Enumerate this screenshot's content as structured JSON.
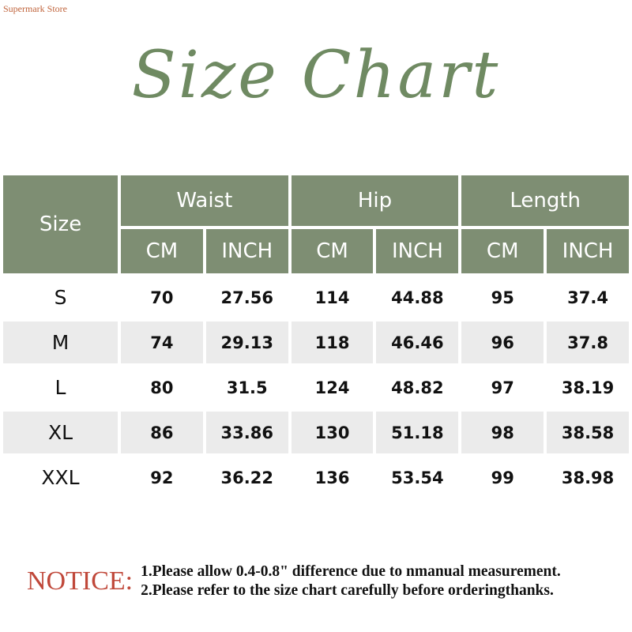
{
  "store_name": "Supermark Store",
  "title": "Size Chart",
  "table": {
    "size_header": "Size",
    "groups": [
      "Waist",
      "Hip",
      "Length"
    ],
    "units": [
      "CM",
      "INCH",
      "CM",
      "INCH",
      "CM",
      "INCH"
    ],
    "rows": [
      {
        "size": "S",
        "values": [
          "70",
          "27.56",
          "114",
          "44.88",
          "95",
          "37.4"
        ]
      },
      {
        "size": "M",
        "values": [
          "74",
          "29.13",
          "118",
          "46.46",
          "96",
          "37.8"
        ]
      },
      {
        "size": "L",
        "values": [
          "80",
          "31.5",
          "124",
          "48.82",
          "97",
          "38.19"
        ]
      },
      {
        "size": "XL",
        "values": [
          "86",
          "33.86",
          "130",
          "51.18",
          "98",
          "38.58"
        ]
      },
      {
        "size": "XXL",
        "values": [
          "92",
          "36.22",
          "136",
          "53.54",
          "99",
          "38.98"
        ]
      }
    ]
  },
  "notice": {
    "label": "NOTICE:",
    "lines": [
      "1.Please allow 0.4-0.8\" difference due to nmanual measurement.",
      "2.Please refer to the size chart carefully before orderingthanks."
    ]
  },
  "colors": {
    "header": "#7e8e73",
    "title": "#6f8a62",
    "notice": "#c0483a",
    "alt_row": "#ebebeb"
  }
}
